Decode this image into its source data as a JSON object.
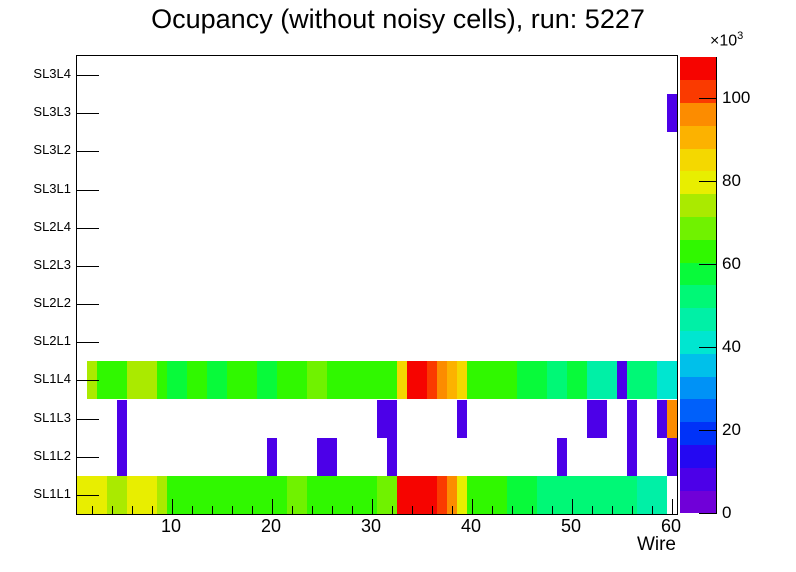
{
  "chart_data": {
    "type": "heatmap",
    "title": "Ocupancy (without noisy cells), run: 5227",
    "xlabel": "Wire",
    "x_range": [
      0.5,
      60.5
    ],
    "x_ticks": [
      10,
      20,
      30,
      40,
      50,
      60
    ],
    "x_minor_tick_step": 2,
    "rows_bottom_to_top": [
      "SL1L1",
      "SL1L2",
      "SL1L3",
      "SL1L4",
      "SL2L1",
      "SL2L2",
      "SL2L3",
      "SL2L4",
      "SL3L1",
      "SL3L2",
      "SL3L3",
      "SL3L4"
    ],
    "grid": "off",
    "background_color": "#ffffff",
    "empty_bin_color": "#ffffff",
    "z_scale": {
      "min": 0,
      "max": 110000,
      "levels": 20,
      "ticks_thousands": [
        0,
        20,
        40,
        60,
        80,
        100
      ],
      "multiplier_base": "×10",
      "multiplier_exp": "3"
    },
    "palette": [
      "#7000d8",
      "#4c00e8",
      "#2408f2",
      "#0032f8",
      "#0060fa",
      "#0092f6",
      "#00c0ea",
      "#00e6d0",
      "#00f0a6",
      "#00f876",
      "#08fa3a",
      "#30f800",
      "#70f200",
      "#aaea00",
      "#e8ee00",
      "#f4d800",
      "#fcb200",
      "#fc8c00",
      "#fa3a00",
      "#f60400"
    ],
    "cells": {
      "SL3L3": [
        [
          60,
          6500
        ]
      ],
      "SL1L4": [
        [
          2,
          74000
        ],
        [
          3,
          64000
        ],
        [
          4,
          64000
        ],
        [
          5,
          64000
        ],
        [
          6,
          74000
        ],
        [
          7,
          74000
        ],
        [
          8,
          74000
        ],
        [
          9,
          62000
        ],
        [
          10,
          58000
        ],
        [
          11,
          58000
        ],
        [
          12,
          62000
        ],
        [
          13,
          62000
        ],
        [
          14,
          60000
        ],
        [
          15,
          60000
        ],
        [
          16,
          63000
        ],
        [
          17,
          63000
        ],
        [
          18,
          63000
        ],
        [
          19,
          59000
        ],
        [
          20,
          59000
        ],
        [
          21,
          63000
        ],
        [
          22,
          63000
        ],
        [
          23,
          63000
        ],
        [
          24,
          67000
        ],
        [
          25,
          67000
        ],
        [
          26,
          63000
        ],
        [
          27,
          63000
        ],
        [
          28,
          63000
        ],
        [
          29,
          63000
        ],
        [
          30,
          63000
        ],
        [
          31,
          63000
        ],
        [
          32,
          62000
        ],
        [
          33,
          84000
        ],
        [
          34,
          108000
        ],
        [
          35,
          108000
        ],
        [
          36,
          101000
        ],
        [
          37,
          96000
        ],
        [
          38,
          90000
        ],
        [
          39,
          85000
        ],
        [
          40,
          63000
        ],
        [
          41,
          62000
        ],
        [
          42,
          62000
        ],
        [
          43,
          62000
        ],
        [
          44,
          62000
        ],
        [
          45,
          57000
        ],
        [
          46,
          57000
        ],
        [
          47,
          57000
        ],
        [
          48,
          51000
        ],
        [
          49,
          51000
        ],
        [
          50,
          56000
        ],
        [
          51,
          56000
        ],
        [
          52,
          46000
        ],
        [
          53,
          46000
        ],
        [
          54,
          46000
        ],
        [
          55,
          6500
        ],
        [
          56,
          50000
        ],
        [
          57,
          50000
        ],
        [
          58,
          50000
        ],
        [
          59,
          41000
        ],
        [
          60,
          41000
        ]
      ],
      "SL1L3": [
        [
          5,
          6500
        ],
        [
          31,
          6500
        ],
        [
          32,
          6500
        ],
        [
          39,
          6500
        ],
        [
          52,
          6500
        ],
        [
          53,
          6500
        ],
        [
          56,
          6500
        ],
        [
          59,
          6500
        ],
        [
          60,
          96000
        ]
      ],
      "SL1L2": [
        [
          5,
          6500
        ],
        [
          20,
          6500
        ],
        [
          25,
          6500
        ],
        [
          26,
          6500
        ],
        [
          32,
          6500
        ],
        [
          49,
          6500
        ],
        [
          56,
          6500
        ],
        [
          60,
          6500
        ]
      ],
      "SL1L1": [
        [
          1,
          80000
        ],
        [
          2,
          80000
        ],
        [
          3,
          80000
        ],
        [
          4,
          73000
        ],
        [
          5,
          73000
        ],
        [
          6,
          80000
        ],
        [
          7,
          80000
        ],
        [
          8,
          79000
        ],
        [
          9,
          73000
        ],
        [
          10,
          63000
        ],
        [
          11,
          63000
        ],
        [
          12,
          64000
        ],
        [
          13,
          64000
        ],
        [
          14,
          64000
        ],
        [
          15,
          62000
        ],
        [
          16,
          62000
        ],
        [
          17,
          62000
        ],
        [
          18,
          62000
        ],
        [
          19,
          62000
        ],
        [
          20,
          62000
        ],
        [
          21,
          63000
        ],
        [
          22,
          68000
        ],
        [
          23,
          68000
        ],
        [
          24,
          62000
        ],
        [
          25,
          62000
        ],
        [
          26,
          63000
        ],
        [
          27,
          63000
        ],
        [
          28,
          63000
        ],
        [
          29,
          63000
        ],
        [
          30,
          63000
        ],
        [
          31,
          68000
        ],
        [
          32,
          68000
        ],
        [
          33,
          108000
        ],
        [
          34,
          108000
        ],
        [
          35,
          108000
        ],
        [
          36,
          108000
        ],
        [
          37,
          101000
        ],
        [
          38,
          95000
        ],
        [
          39,
          78000
        ],
        [
          40,
          63000
        ],
        [
          41,
          63000
        ],
        [
          42,
          62000
        ],
        [
          43,
          62000
        ],
        [
          44,
          58000
        ],
        [
          45,
          58000
        ],
        [
          46,
          58000
        ],
        [
          47,
          52000
        ],
        [
          48,
          52000
        ],
        [
          49,
          52000
        ],
        [
          50,
          52000
        ],
        [
          51,
          52000
        ],
        [
          52,
          52000
        ],
        [
          53,
          52000
        ],
        [
          54,
          52000
        ],
        [
          55,
          52000
        ],
        [
          56,
          52000
        ],
        [
          57,
          47000
        ],
        [
          58,
          47000
        ],
        [
          59,
          47000
        ]
      ]
    }
  }
}
